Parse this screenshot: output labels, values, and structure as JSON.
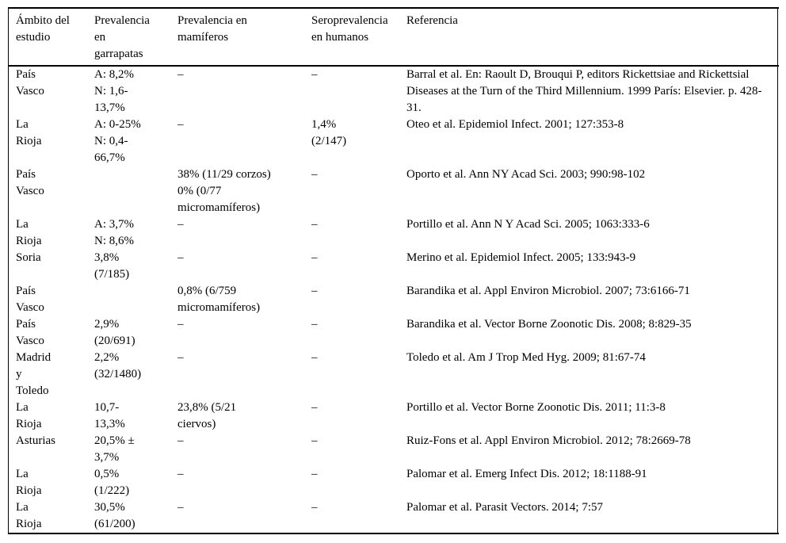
{
  "table": {
    "columns": {
      "ambito": {
        "label": "Ámbito del\nestudio"
      },
      "garrapatas": {
        "label": "Prevalencia\nen\ngarrapatas"
      },
      "mamiferos": {
        "label": "Prevalencia en\nmamíferos"
      },
      "humanos": {
        "label": "Seroprevalencia\nen humanos"
      },
      "referencia": {
        "label": "Referencia"
      }
    },
    "empty_marker": "–",
    "rows": [
      {
        "ambito": "País\nVasco",
        "garrapatas": "A: 8,2%\nN: 1,6-\n13,7%",
        "mamiferos": "–",
        "humanos": "–",
        "referencia": "Barral et al. En: Raoult D, Brouqui P, editors Rickettsiae and Rickettsial Diseases at the Turn of the Third Millennium. 1999 París: Elsevier. p. 428-31."
      },
      {
        "ambito": "La\nRioja",
        "garrapatas": "A: 0-25%\nN: 0,4-\n66,7%",
        "mamiferos": "–",
        "humanos": "1,4%\n(2/147)",
        "referencia": "Oteo et al. Epidemiol Infect. 2001; 127:353-8"
      },
      {
        "ambito": "País\nVasco",
        "garrapatas": "",
        "mamiferos": "38% (11/29 corzos)\n0% (0/77\nmicromamíferos)",
        "humanos": "–",
        "referencia": "Oporto et al. Ann NY Acad Sci. 2003; 990:98-102"
      },
      {
        "ambito": "La\nRioja",
        "garrapatas": "A: 3,7%\nN: 8,6%",
        "mamiferos": "–",
        "humanos": "–",
        "referencia": "Portillo et al. Ann N Y Acad Sci. 2005; 1063:333-6"
      },
      {
        "ambito": "Soria",
        "garrapatas": "3,8%\n(7/185)",
        "mamiferos": "–",
        "humanos": "–",
        "referencia": "Merino et al. Epidemiol Infect. 2005; 133:943-9"
      },
      {
        "ambito": "País\nVasco",
        "garrapatas": "",
        "mamiferos": "0,8% (6/759\nmicromamíferos)",
        "humanos": "–",
        "referencia": "Barandika et al. Appl Environ Microbiol. 2007; 73:6166-71"
      },
      {
        "ambito": "País\nVasco",
        "garrapatas": "2,9%\n(20/691)",
        "mamiferos": "–",
        "humanos": "–",
        "referencia": "Barandika et al. Vector Borne Zoonotic Dis. 2008; 8:829-35"
      },
      {
        "ambito": "Madrid\ny\nToledo",
        "garrapatas": "2,2%\n(32/1480)",
        "mamiferos": "–",
        "humanos": "–",
        "referencia": "Toledo et al. Am J Trop Med Hyg. 2009; 81:67-74"
      },
      {
        "ambito": "La\nRioja",
        "garrapatas": "10,7-\n13,3%",
        "mamiferos": "23,8% (5/21\nciervos)",
        "humanos": "–",
        "referencia": "Portillo et al. Vector Borne Zoonotic Dis. 2011; 11:3-8"
      },
      {
        "ambito": "Asturias",
        "garrapatas": "20,5% ±\n3,7%",
        "mamiferos": "–",
        "humanos": "–",
        "referencia": "Ruiz-Fons et al. Appl Environ Microbiol. 2012; 78:2669-78"
      },
      {
        "ambito": "La\nRioja",
        "garrapatas": "0,5%\n(1/222)",
        "mamiferos": "–",
        "humanos": "–",
        "referencia": "Palomar et al. Emerg Infect Dis. 2012; 18:1188-91"
      },
      {
        "ambito": "La\nRioja",
        "garrapatas": "30,5%\n(61/200)",
        "mamiferos": "–",
        "humanos": "–",
        "referencia": "Palomar et al. Parasit Vectors. 2014; 7:57"
      }
    ]
  }
}
